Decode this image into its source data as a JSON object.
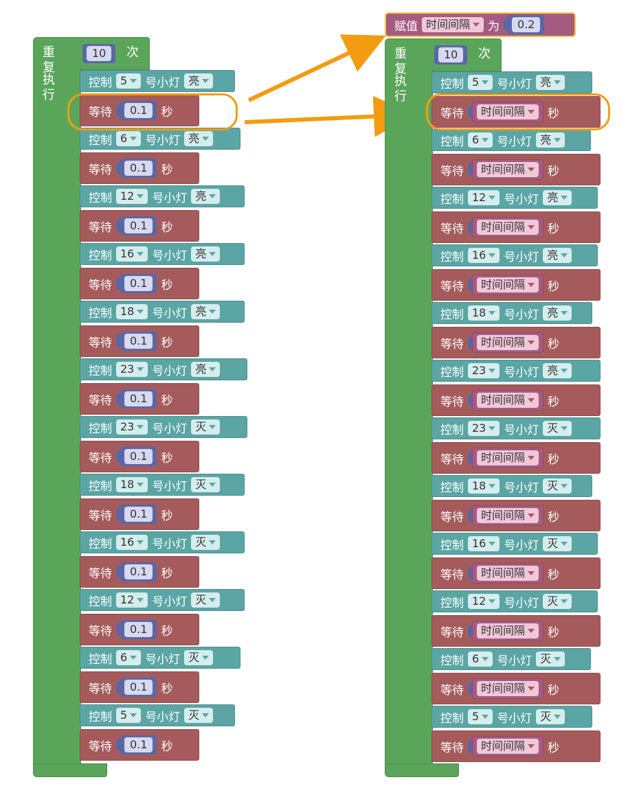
{
  "left_program": {
    "repeat_label": "重复",
    "repeat_count": "10",
    "times_label": "次",
    "exec_label": "执行",
    "blocks": [
      {
        "type": "ctrl",
        "control": "控制",
        "pin": "5",
        "lamp": "号小灯",
        "state": "亮"
      },
      {
        "type": "wait",
        "wait": "等待",
        "value": "0.1",
        "unit": "秒"
      },
      {
        "type": "ctrl",
        "control": "控制",
        "pin": "6",
        "lamp": "号小灯",
        "state": "亮"
      },
      {
        "type": "wait",
        "wait": "等待",
        "value": "0.1",
        "unit": "秒"
      },
      {
        "type": "ctrl",
        "control": "控制",
        "pin": "12",
        "lamp": "号小灯",
        "state": "亮"
      },
      {
        "type": "wait",
        "wait": "等待",
        "value": "0.1",
        "unit": "秒"
      },
      {
        "type": "ctrl",
        "control": "控制",
        "pin": "16",
        "lamp": "号小灯",
        "state": "亮"
      },
      {
        "type": "wait",
        "wait": "等待",
        "value": "0.1",
        "unit": "秒"
      },
      {
        "type": "ctrl",
        "control": "控制",
        "pin": "18",
        "lamp": "号小灯",
        "state": "亮"
      },
      {
        "type": "wait",
        "wait": "等待",
        "value": "0.1",
        "unit": "秒"
      },
      {
        "type": "ctrl",
        "control": "控制",
        "pin": "23",
        "lamp": "号小灯",
        "state": "亮"
      },
      {
        "type": "wait",
        "wait": "等待",
        "value": "0.1",
        "unit": "秒"
      },
      {
        "type": "ctrl",
        "control": "控制",
        "pin": "23",
        "lamp": "号小灯",
        "state": "灭"
      },
      {
        "type": "wait",
        "wait": "等待",
        "value": "0.1",
        "unit": "秒"
      },
      {
        "type": "ctrl",
        "control": "控制",
        "pin": "18",
        "lamp": "号小灯",
        "state": "灭"
      },
      {
        "type": "wait",
        "wait": "等待",
        "value": "0.1",
        "unit": "秒"
      },
      {
        "type": "ctrl",
        "control": "控制",
        "pin": "16",
        "lamp": "号小灯",
        "state": "灭"
      },
      {
        "type": "wait",
        "wait": "等待",
        "value": "0.1",
        "unit": "秒"
      },
      {
        "type": "ctrl",
        "control": "控制",
        "pin": "12",
        "lamp": "号小灯",
        "state": "灭"
      },
      {
        "type": "wait",
        "wait": "等待",
        "value": "0.1",
        "unit": "秒"
      },
      {
        "type": "ctrl",
        "control": "控制",
        "pin": "6",
        "lamp": "号小灯",
        "state": "灭"
      },
      {
        "type": "wait",
        "wait": "等待",
        "value": "0.1",
        "unit": "秒"
      },
      {
        "type": "ctrl",
        "control": "控制",
        "pin": "5",
        "lamp": "号小灯",
        "state": "灭"
      },
      {
        "type": "wait",
        "wait": "等待",
        "value": "0.1",
        "unit": "秒"
      }
    ]
  },
  "right_program": {
    "assign": {
      "label": "赋值",
      "variable": "时间间隔",
      "to_label": "为",
      "value": "0.2"
    },
    "repeat_label": "重复",
    "repeat_count": "10",
    "times_label": "次",
    "exec_label": "执行",
    "blocks": [
      {
        "type": "ctrl",
        "control": "控制",
        "pin": "5",
        "lamp": "号小灯",
        "state": "亮"
      },
      {
        "type": "wait",
        "wait": "等待",
        "variable": "时间间隔",
        "unit": "秒"
      },
      {
        "type": "ctrl",
        "control": "控制",
        "pin": "6",
        "lamp": "号小灯",
        "state": "亮"
      },
      {
        "type": "wait",
        "wait": "等待",
        "variable": "时间间隔",
        "unit": "秒"
      },
      {
        "type": "ctrl",
        "control": "控制",
        "pin": "12",
        "lamp": "号小灯",
        "state": "亮"
      },
      {
        "type": "wait",
        "wait": "等待",
        "variable": "时间间隔",
        "unit": "秒"
      },
      {
        "type": "ctrl",
        "control": "控制",
        "pin": "16",
        "lamp": "号小灯",
        "state": "亮"
      },
      {
        "type": "wait",
        "wait": "等待",
        "variable": "时间间隔",
        "unit": "秒"
      },
      {
        "type": "ctrl",
        "control": "控制",
        "pin": "18",
        "lamp": "号小灯",
        "state": "亮"
      },
      {
        "type": "wait",
        "wait": "等待",
        "variable": "时间间隔",
        "unit": "秒"
      },
      {
        "type": "ctrl",
        "control": "控制",
        "pin": "23",
        "lamp": "号小灯",
        "state": "亮"
      },
      {
        "type": "wait",
        "wait": "等待",
        "variable": "时间间隔",
        "unit": "秒"
      },
      {
        "type": "ctrl",
        "control": "控制",
        "pin": "23",
        "lamp": "号小灯",
        "state": "灭"
      },
      {
        "type": "wait",
        "wait": "等待",
        "variable": "时间间隔",
        "unit": "秒"
      },
      {
        "type": "ctrl",
        "control": "控制",
        "pin": "18",
        "lamp": "号小灯",
        "state": "灭"
      },
      {
        "type": "wait",
        "wait": "等待",
        "variable": "时间间隔",
        "unit": "秒"
      },
      {
        "type": "ctrl",
        "control": "控制",
        "pin": "16",
        "lamp": "号小灯",
        "state": "灭"
      },
      {
        "type": "wait",
        "wait": "等待",
        "variable": "时间间隔",
        "unit": "秒"
      },
      {
        "type": "ctrl",
        "control": "控制",
        "pin": "12",
        "lamp": "号小灯",
        "state": "灭"
      },
      {
        "type": "wait",
        "wait": "等待",
        "variable": "时间间隔",
        "unit": "秒"
      },
      {
        "type": "ctrl",
        "control": "控制",
        "pin": "6",
        "lamp": "号小灯",
        "state": "灭"
      },
      {
        "type": "wait",
        "wait": "等待",
        "variable": "时间间隔",
        "unit": "秒"
      },
      {
        "type": "ctrl",
        "control": "控制",
        "pin": "5",
        "lamp": "号小灯",
        "state": "灭"
      },
      {
        "type": "wait",
        "wait": "等待",
        "variable": "时间间隔",
        "unit": "秒"
      }
    ]
  },
  "colors": {
    "loop_green": "#5ba55b",
    "control_teal": "#5ba5a5",
    "wait_red": "#a55b5b",
    "variable_pink": "#a55b80",
    "number_blue": "#5b67a5",
    "highlight_orange": "#f39c12",
    "assign_outline": "#f6c342"
  }
}
